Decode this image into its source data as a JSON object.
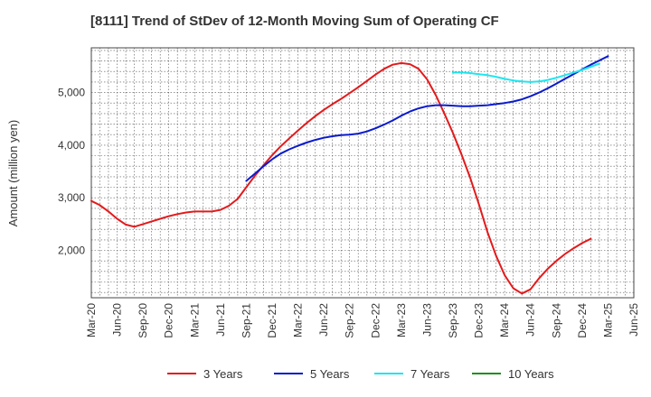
{
  "chart_data": {
    "type": "line",
    "title": "[8111]  Trend of StDev of 12-Month Moving Sum of Operating CF",
    "xlabel": "",
    "ylabel": "Amount (million yen)",
    "ylim": [
      1100,
      5850
    ],
    "yticks": [
      2000,
      3000,
      4000,
      5000
    ],
    "ytick_labels": [
      "2,000",
      "3,000",
      "4,000",
      "5,000"
    ],
    "xlim": [
      "Mar-20",
      "Jun-25"
    ],
    "xtick_labels": [
      "Mar-20",
      "Jun-20",
      "Sep-20",
      "Dec-20",
      "Mar-21",
      "Jun-21",
      "Sep-21",
      "Dec-21",
      "Mar-22",
      "Jun-22",
      "Sep-22",
      "Dec-22",
      "Mar-23",
      "Jun-23",
      "Sep-23",
      "Dec-23",
      "Mar-24",
      "Jun-24",
      "Sep-24",
      "Dec-24",
      "Mar-25",
      "Jun-25"
    ],
    "grid": true,
    "legend_position": "bottom",
    "series": [
      {
        "name": "3 Years",
        "color": "#e31a1c",
        "start": "Mar-20",
        "values": [
          2940,
          2860,
          2740,
          2600,
          2490,
          2450,
          2500,
          2550,
          2600,
          2650,
          2690,
          2720,
          2740,
          2740,
          2740,
          2770,
          2850,
          2980,
          3200,
          3420,
          3620,
          3810,
          3980,
          4130,
          4280,
          4420,
          4550,
          4670,
          4780,
          4880,
          4990,
          5100,
          5220,
          5340,
          5450,
          5530,
          5560,
          5540,
          5450,
          5250,
          4950,
          4600,
          4230,
          3820,
          3380,
          2880,
          2350,
          1900,
          1530,
          1280,
          1180,
          1260,
          1470,
          1650,
          1800,
          1930,
          2040,
          2140,
          2220
        ]
      },
      {
        "name": "5 Years",
        "color": "#0a1acd",
        "start": "Sep-21",
        "values": [
          3320,
          3460,
          3600,
          3730,
          3840,
          3920,
          3990,
          4050,
          4100,
          4140,
          4170,
          4190,
          4200,
          4220,
          4260,
          4320,
          4390,
          4470,
          4560,
          4640,
          4700,
          4740,
          4760,
          4760,
          4750,
          4740,
          4740,
          4750,
          4760,
          4780,
          4800,
          4830,
          4870,
          4930,
          5000,
          5080,
          5170,
          5260,
          5350,
          5440,
          5530,
          5610,
          5690
        ]
      },
      {
        "name": "7 Years",
        "color": "#1ee6f0",
        "start": "Sep-23",
        "values": [
          5380,
          5380,
          5370,
          5350,
          5330,
          5300,
          5260,
          5230,
          5210,
          5200,
          5210,
          5240,
          5280,
          5330,
          5380,
          5430,
          5490,
          5550
        ]
      },
      {
        "name": "10 Years",
        "color": "#1f8f1f",
        "start": "Mar-25",
        "values": []
      }
    ]
  }
}
